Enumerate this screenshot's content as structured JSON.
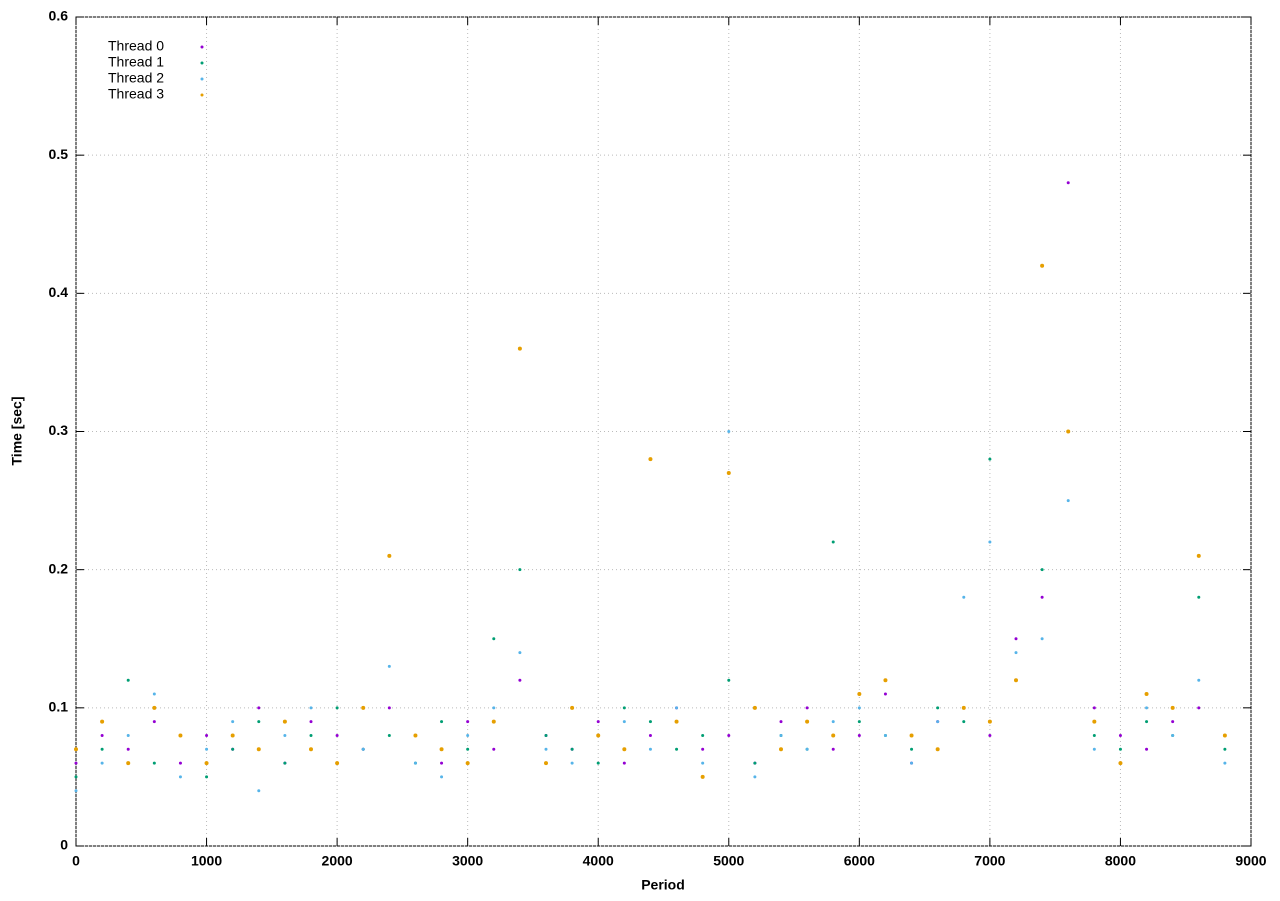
{
  "chart_data": {
    "type": "scatter",
    "x_label": "Period",
    "y_label": "Time [sec]",
    "xlim": [
      0,
      9000
    ],
    "ylim": [
      0,
      0.6
    ],
    "xticks": [
      0,
      1000,
      2000,
      3000,
      4000,
      5000,
      6000,
      7000,
      8000,
      9000
    ],
    "yticks": [
      0,
      0.1,
      0.2,
      0.3,
      0.4,
      0.5,
      0.6
    ],
    "grid": true,
    "legend": "upper-left",
    "x": [
      0,
      200,
      400,
      600,
      800,
      1000,
      1200,
      1400,
      1600,
      1800,
      2000,
      2200,
      2400,
      2600,
      2800,
      3000,
      3200,
      3400,
      3600,
      3800,
      4000,
      4200,
      4400,
      4600,
      4800,
      5000,
      5200,
      5400,
      5600,
      5800,
      6000,
      6200,
      6400,
      6600,
      6800,
      7000,
      7200,
      7400,
      7600,
      7800,
      8000,
      8200,
      8400,
      8600,
      8800
    ],
    "series": [
      {
        "name": "Thread 0",
        "color": "#9400d3",
        "values": [
          0.06,
          0.08,
          0.07,
          0.09,
          0.06,
          0.08,
          0.07,
          0.1,
          0.06,
          0.09,
          0.08,
          0.07,
          0.1,
          0.08,
          0.06,
          0.09,
          0.07,
          0.12,
          0.08,
          0.07,
          0.09,
          0.06,
          0.08,
          0.1,
          0.07,
          0.08,
          0.06,
          0.09,
          0.1,
          0.07,
          0.08,
          0.11,
          0.06,
          0.09,
          0.1,
          0.08,
          0.15,
          0.18,
          0.48,
          0.1,
          0.08,
          0.07,
          0.09,
          0.1,
          0.08
        ]
      },
      {
        "name": "Thread 1",
        "color": "#009e73",
        "values": [
          0.05,
          0.07,
          0.12,
          0.06,
          0.08,
          0.05,
          0.07,
          0.09,
          0.06,
          0.08,
          0.1,
          0.07,
          0.08,
          0.06,
          0.09,
          0.07,
          0.15,
          0.2,
          0.08,
          0.07,
          0.06,
          0.1,
          0.09,
          0.07,
          0.08,
          0.12,
          0.06,
          0.08,
          0.07,
          0.22,
          0.09,
          0.08,
          0.07,
          0.1,
          0.09,
          0.28,
          0.12,
          0.2,
          0.3,
          0.08,
          0.07,
          0.09,
          0.08,
          0.18,
          0.07
        ]
      },
      {
        "name": "Thread 2",
        "color": "#56b4e9",
        "values": [
          0.04,
          0.06,
          0.08,
          0.11,
          0.05,
          0.07,
          0.09,
          0.04,
          0.08,
          0.1,
          0.06,
          0.07,
          0.13,
          0.06,
          0.05,
          0.08,
          0.1,
          0.14,
          0.07,
          0.06,
          0.08,
          0.09,
          0.07,
          0.1,
          0.06,
          0.3,
          0.05,
          0.08,
          0.07,
          0.09,
          0.1,
          0.08,
          0.06,
          0.09,
          0.18,
          0.22,
          0.14,
          0.15,
          0.25,
          0.07,
          0.06,
          0.1,
          0.08,
          0.12,
          0.06
        ]
      },
      {
        "name": "Thread 3",
        "color": "#e69f00",
        "values": [
          0.07,
          0.09,
          0.06,
          0.1,
          0.08,
          0.06,
          0.08,
          0.07,
          0.09,
          0.07,
          0.06,
          0.1,
          0.21,
          0.08,
          0.07,
          0.06,
          0.09,
          0.36,
          0.06,
          0.1,
          0.08,
          0.07,
          0.28,
          0.09,
          0.05,
          0.27,
          0.1,
          0.07,
          0.09,
          0.08,
          0.11,
          0.12,
          0.08,
          0.07,
          0.1,
          0.09,
          0.12,
          0.42,
          0.3,
          0.09,
          0.06,
          0.11,
          0.1,
          0.21,
          0.08
        ]
      }
    ]
  }
}
